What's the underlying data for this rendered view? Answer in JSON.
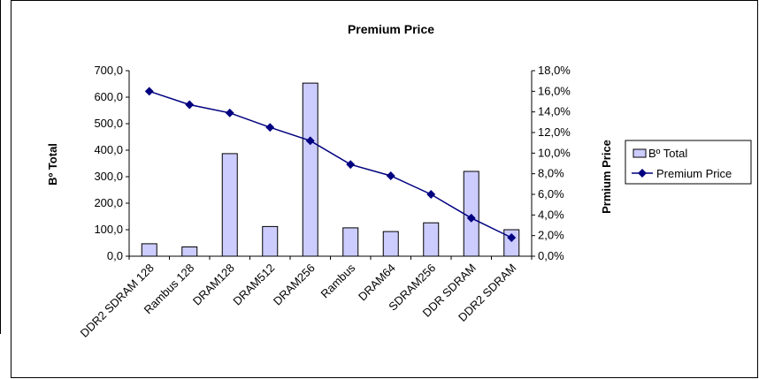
{
  "chart_data": {
    "type": "bar",
    "title": "Premium Price",
    "categories": [
      "DDR2 SDRAM 128",
      "Rambus 128",
      "DRAM128",
      "DRAM512",
      "DRAM256",
      "Rambus",
      "DRAM64",
      "SDRAM256",
      "DDR SDRAM",
      "DDR2 SDRAM"
    ],
    "series": [
      {
        "name": "Bº Total",
        "type": "bar",
        "axis": "left",
        "values": [
          47,
          35,
          387,
          112,
          653,
          107,
          93,
          126,
          320,
          100
        ]
      },
      {
        "name": "Premium Price",
        "type": "line",
        "axis": "right",
        "values": [
          16.0,
          14.7,
          13.9,
          12.5,
          11.2,
          8.9,
          7.8,
          6.0,
          3.7,
          1.8
        ]
      }
    ],
    "ylabel": "Bº Total",
    "y2label": "Prmium Price",
    "ylim": [
      0,
      700
    ],
    "y2lim": [
      0,
      18
    ],
    "yticks": [
      "0,0",
      "100,0",
      "200,0",
      "300,0",
      "400,0",
      "500,0",
      "600,0",
      "700,0"
    ],
    "y2ticks": [
      "0,0%",
      "2,0%",
      "4,0%",
      "6,0%",
      "8,0%",
      "10,0%",
      "12,0%",
      "14,0%",
      "16,0%",
      "18,0%"
    ],
    "grid": false,
    "legend_position": "right",
    "colors": {
      "bar_fill": "#ccccff",
      "bar_stroke": "#000000",
      "line": "#000080"
    }
  }
}
